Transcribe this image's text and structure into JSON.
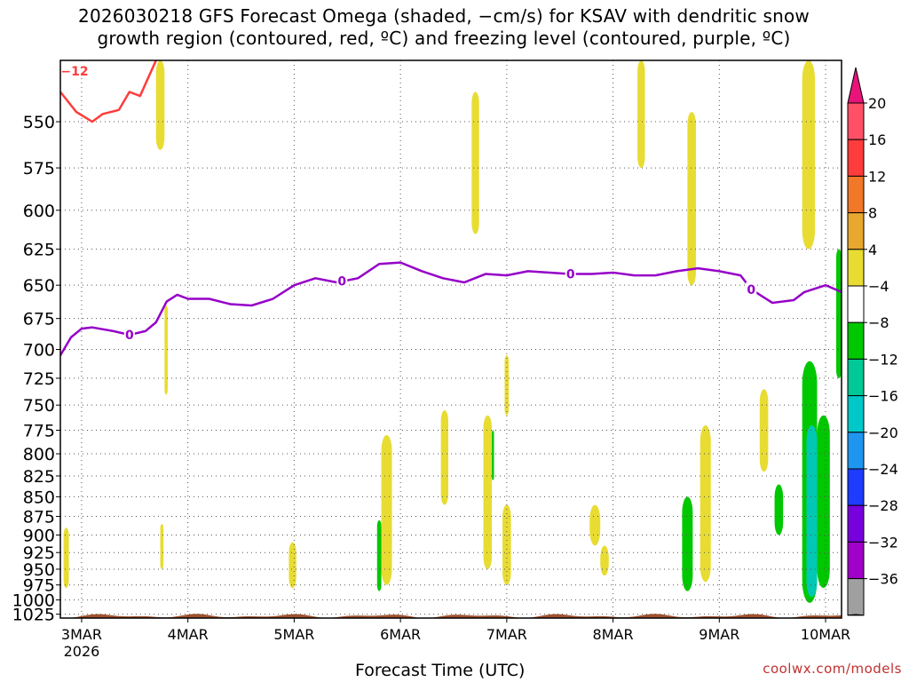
{
  "title": {
    "line1": "2026030218 GFS Forecast Omega (shaded, −cm/s) for KSAV with dendritic snow",
    "line2": "growth region (contoured, red, ºC) and freezing level (contoured, purple, ºC)"
  },
  "credit": "coolwx.com/models",
  "chart_data": {
    "type": "heatmap",
    "xlabel": "Forecast Time (UTC)",
    "x_ticks": [
      "3MAR",
      "4MAR",
      "5MAR",
      "6MAR",
      "7MAR",
      "8MAR",
      "9MAR",
      "10MAR"
    ],
    "x_year_label": "2026",
    "x_range_days": [
      2.8,
      10.15
    ],
    "y_ticks": [
      550,
      575,
      600,
      625,
      650,
      675,
      700,
      725,
      750,
      775,
      800,
      825,
      850,
      875,
      900,
      925,
      950,
      975,
      1000,
      1025
    ],
    "y_range_hpa": [
      520,
      1032
    ],
    "y_scale": "reciprocal",
    "grid": true,
    "colorbar": {
      "labels": [
        "20",
        "16",
        "12",
        "8",
        "4",
        "−4",
        "−8",
        "−12",
        "−16",
        "−20",
        "−24",
        "−28",
        "−32",
        "−36"
      ],
      "colors": [
        "#ff5068",
        "#ff3c3c",
        "#f07828",
        "#e8a830",
        "#e8dc32",
        "#ffffff",
        "#00c800",
        "#00c896",
        "#00c8c8",
        "#1e96f0",
        "#1e3cff",
        "#7800dc",
        "#a000c8",
        "#a0a0a0"
      ],
      "top_arrow_color": "#e8147a",
      "bottom_arrow_color": "#000000"
    },
    "freezing_level": {
      "color": "#9600c8",
      "label": "0",
      "label_points": [
        [
          3.45,
          688
        ],
        [
          5.45,
          647
        ],
        [
          7.6,
          642
        ],
        [
          9.3,
          653
        ]
      ],
      "points": [
        [
          2.8,
          705
        ],
        [
          2.9,
          690
        ],
        [
          3.0,
          683
        ],
        [
          3.1,
          682
        ],
        [
          3.3,
          685
        ],
        [
          3.45,
          688
        ],
        [
          3.6,
          685
        ],
        [
          3.7,
          678
        ],
        [
          3.8,
          662
        ],
        [
          3.9,
          657
        ],
        [
          4.0,
          660
        ],
        [
          4.2,
          660
        ],
        [
          4.4,
          664
        ],
        [
          4.6,
          665
        ],
        [
          4.8,
          660
        ],
        [
          5.0,
          650
        ],
        [
          5.2,
          645
        ],
        [
          5.4,
          648
        ],
        [
          5.6,
          645
        ],
        [
          5.8,
          635
        ],
        [
          6.0,
          634
        ],
        [
          6.2,
          640
        ],
        [
          6.4,
          645
        ],
        [
          6.6,
          648
        ],
        [
          6.8,
          642
        ],
        [
          7.0,
          643
        ],
        [
          7.2,
          640
        ],
        [
          7.6,
          642
        ],
        [
          7.8,
          642
        ],
        [
          8.0,
          641
        ],
        [
          8.2,
          643
        ],
        [
          8.4,
          643
        ],
        [
          8.6,
          640
        ],
        [
          8.8,
          638
        ],
        [
          9.0,
          640
        ],
        [
          9.2,
          643
        ],
        [
          9.3,
          653
        ],
        [
          9.5,
          663
        ],
        [
          9.7,
          661
        ],
        [
          9.8,
          655
        ],
        [
          10.0,
          650
        ],
        [
          10.15,
          655
        ]
      ]
    },
    "dendritic_region": {
      "color": "#ff3c3c",
      "label": "−12",
      "points": [
        [
          2.8,
          535
        ],
        [
          2.95,
          545
        ],
        [
          3.1,
          550
        ],
        [
          3.2,
          546
        ],
        [
          3.35,
          544
        ],
        [
          3.45,
          535
        ],
        [
          3.55,
          537
        ],
        [
          3.7,
          520
        ]
      ]
    },
    "shaded": [
      {
        "x": [
          3.7,
          3.78
        ],
        "p": [
          520,
          565
        ],
        "omega": 6
      },
      {
        "x": [
          2.83,
          2.88
        ],
        "p": [
          890,
          980
        ],
        "omega": 6
      },
      {
        "x": [
          3.74,
          3.77
        ],
        "p": [
          885,
          950
        ],
        "omega": 6
      },
      {
        "x": [
          3.78,
          3.81
        ],
        "p": [
          665,
          740
        ],
        "omega": 6
      },
      {
        "x": [
          4.95,
          5.02
        ],
        "p": [
          910,
          980
        ],
        "omega": 6
      },
      {
        "x": [
          5.82,
          5.92
        ],
        "p": [
          780,
          975
        ],
        "omega": 6
      },
      {
        "x": [
          5.78,
          5.82
        ],
        "p": [
          880,
          985
        ],
        "omega": 6,
        "level": -6
      },
      {
        "x": [
          6.38,
          6.45
        ],
        "p": [
          755,
          860
        ],
        "omega": 6
      },
      {
        "x": [
          6.67,
          6.74
        ],
        "p": [
          535,
          615
        ],
        "omega": 6
      },
      {
        "x": [
          6.78,
          6.86
        ],
        "p": [
          760,
          950
        ],
        "omega": 6
      },
      {
        "x": [
          6.86,
          6.88
        ],
        "p": [
          775,
          830
        ],
        "omega": 6,
        "level": -6
      },
      {
        "x": [
          6.96,
          7.04
        ],
        "p": [
          860,
          975
        ],
        "omega": 6
      },
      {
        "x": [
          6.98,
          7.02
        ],
        "p": [
          705,
          760
        ],
        "omega": 6
      },
      {
        "x": [
          7.78,
          7.88
        ],
        "p": [
          860,
          915
        ],
        "omega": 6
      },
      {
        "x": [
          7.88,
          7.96
        ],
        "p": [
          915,
          960
        ],
        "omega": 6
      },
      {
        "x": [
          8.23,
          8.3
        ],
        "p": [
          520,
          575
        ],
        "omega": 6
      },
      {
        "x": [
          8.7,
          8.78
        ],
        "p": [
          545,
          650
        ],
        "omega": 6
      },
      {
        "x": [
          8.65,
          8.75
        ],
        "p": [
          850,
          985
        ],
        "omega": 6,
        "level": -6
      },
      {
        "x": [
          8.82,
          8.92
        ],
        "p": [
          770,
          970
        ],
        "omega": 6
      },
      {
        "x": [
          9.38,
          9.46
        ],
        "p": [
          735,
          820
        ],
        "omega": 6
      },
      {
        "x": [
          9.52,
          9.6
        ],
        "p": [
          835,
          900
        ],
        "omega": 6,
        "level": -6
      },
      {
        "x": [
          9.78,
          9.9
        ],
        "p": [
          520,
          625
        ],
        "omega": 6
      },
      {
        "x": [
          9.78,
          9.92
        ],
        "p": [
          710,
          1005
        ],
        "omega": 6,
        "level": -6
      },
      {
        "x": [
          9.92,
          10.04
        ],
        "p": [
          760,
          980
        ],
        "omega": 6,
        "level": -6
      },
      {
        "x": [
          9.82,
          9.92
        ],
        "p": [
          770,
          995
        ],
        "omega": 6,
        "level": -10
      },
      {
        "x": [
          10.1,
          10.15
        ],
        "p": [
          625,
          725
        ],
        "omega": 6,
        "level": -6
      }
    ],
    "ground": {
      "color": "#a0522d",
      "p": [
        1025,
        1032
      ]
    }
  }
}
